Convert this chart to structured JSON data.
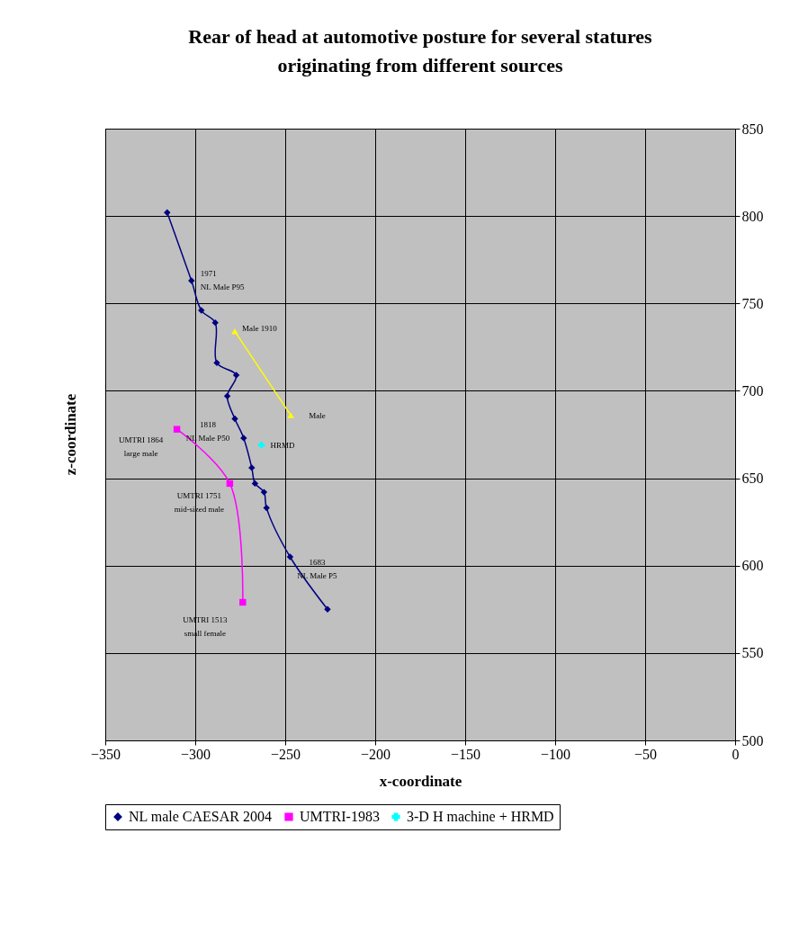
{
  "chart_data": {
    "type": "line",
    "title": "Rear of head at automotive posture for several statures\noriginating from different sources",
    "xlabel": "x-coordinate",
    "ylabel": "z-coordinate",
    "xlim": [
      -350,
      0
    ],
    "xticks": [
      -350,
      -300,
      -250,
      -200,
      -150,
      -100,
      -50,
      0
    ],
    "ylim": [
      500,
      850
    ],
    "yticks": [
      500,
      550,
      600,
      650,
      700,
      750,
      800,
      850
    ],
    "grid": true,
    "legend": "bottom",
    "series": [
      {
        "name": "NL male CAESAR 2004",
        "color": "#000080",
        "marker": "diamond",
        "x": [
          -315.6,
          -302.1,
          -296.6,
          -288.9,
          -288,
          -277.2,
          -282.2,
          -278,
          -273.1,
          -268.6,
          -266.8,
          -261.8,
          -260.4,
          -247.3,
          -226.5
        ],
        "values": [
          802,
          763,
          746,
          739,
          716,
          709,
          697,
          684,
          673,
          656,
          647,
          642,
          633,
          605,
          575
        ]
      },
      {
        "name": "UMTRI-1983",
        "color": "#ff00ff",
        "marker": "square",
        "x": [
          -310.2,
          -280.8,
          -273.6
        ],
        "values": [
          678,
          647,
          579
        ]
      },
      {
        "color": "#ffff00",
        "marker": "triangle",
        "x": [
          -278,
          -246.9
        ],
        "values": [
          734,
          686
        ]
      },
      {
        "name": "3-D H machine + HRMD",
        "color": "#00ffff",
        "marker": "cross",
        "type": "scatter",
        "x": [
          -263.2
        ],
        "values": [
          669
        ]
      }
    ],
    "annotations": [
      {
        "text": "1971\nNL Male P95",
        "x": -302.1,
        "y": 763
      },
      {
        "text": "Male 1910",
        "x": -278,
        "y": 734
      },
      {
        "text": "Male",
        "x": -246.9,
        "y": 686
      },
      {
        "text": "1818\nNL Male P50",
        "x": -278,
        "y": 684
      },
      {
        "text": "HRMD",
        "x": -263.2,
        "y": 669
      },
      {
        "text": "UMTRI 1864\nlarge male",
        "x": -310.2,
        "y": 678
      },
      {
        "text": "UMTRI 1751\nmid-sized male",
        "x": -280.8,
        "y": 647
      },
      {
        "text": "1683\nNL Male P5",
        "x": -247.3,
        "y": 605
      },
      {
        "text": "UMTRI 1513\nsmall female",
        "x": -273.6,
        "y": 579
      }
    ]
  }
}
